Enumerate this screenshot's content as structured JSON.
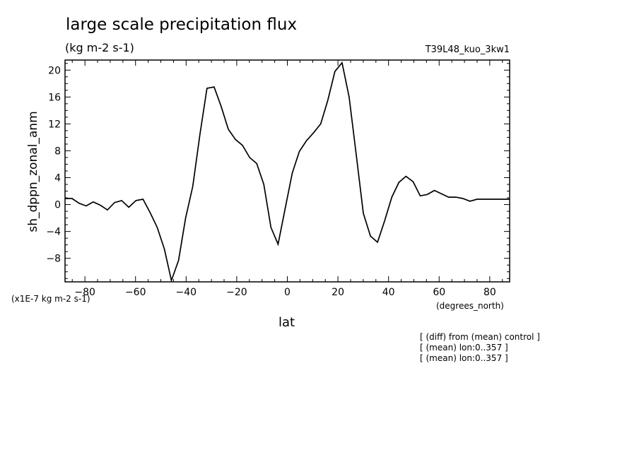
{
  "title": "large scale precipitation flux",
  "units": "(kg m-2 s-1)",
  "run_id": "T39L48_kuo_3kw1",
  "notes": [
    "[ (diff) from (mean) control ]",
    "[ (mean) lon:0..357 ]",
    "[ (mean) lon:0..357 ]"
  ],
  "chart_data": {
    "type": "line",
    "title": "large scale precipitation flux",
    "units": "(kg m-2 s-1)",
    "xlabel": "lat",
    "xunits": "(degrees_north)",
    "ylabel": "sh_dppn_zonal_anm",
    "yscale_note": "(x1E-7 kg m-2 s-1)",
    "xlim": [
      -87.86,
      87.86
    ],
    "ylim": [
      -11.5,
      21.5
    ],
    "xticks": [
      -80,
      -60,
      -40,
      -20,
      0,
      20,
      40,
      60,
      80
    ],
    "yticks": [
      -8,
      -4,
      0,
      4,
      8,
      12,
      16,
      20
    ],
    "grid": false,
    "x": [
      -87.86,
      -85.1,
      -82.31,
      -79.51,
      -76.7,
      -73.9,
      -71.09,
      -68.28,
      -65.47,
      -62.66,
      -59.85,
      -57.04,
      -54.23,
      -51.42,
      -48.62,
      -45.81,
      -43.0,
      -40.19,
      -37.38,
      -34.57,
      -31.76,
      -28.95,
      -26.14,
      -23.33,
      -20.52,
      -17.71,
      -14.9,
      -12.1,
      -9.29,
      -6.48,
      -3.67,
      -0.86,
      1.95,
      4.76,
      7.57,
      10.38,
      13.19,
      15.99,
      18.8,
      21.61,
      24.42,
      27.23,
      30.04,
      32.85,
      35.66,
      38.47,
      41.28,
      44.08,
      46.89,
      49.7,
      52.51,
      55.32,
      58.13,
      60.94,
      63.75,
      66.56,
      69.37,
      72.18,
      74.99,
      77.79,
      80.6,
      83.41,
      86.22,
      87.86
    ],
    "values": [
      0.9,
      0.9,
      0.2,
      -0.2,
      0.4,
      -0.1,
      -0.8,
      0.3,
      0.6,
      -0.4,
      0.6,
      0.8,
      -1.2,
      -3.4,
      -6.6,
      -11.3,
      -8.3,
      -2.0,
      2.7,
      10.4,
      17.3,
      17.5,
      14.6,
      11.2,
      9.7,
      8.8,
      7.0,
      6.1,
      3.0,
      -3.4,
      -5.9,
      -0.6,
      4.7,
      7.9,
      9.5,
      10.7,
      12.0,
      15.5,
      19.8,
      21.1,
      16.0,
      7.4,
      -1.3,
      -4.7,
      -5.6,
      -2.4,
      1.1,
      3.3,
      4.2,
      3.4,
      1.3,
      1.5,
      2.1,
      1.6,
      1.1,
      1.1,
      0.9,
      0.5,
      0.8,
      0.8,
      0.8,
      0.8,
      0.8,
      0.8
    ]
  }
}
